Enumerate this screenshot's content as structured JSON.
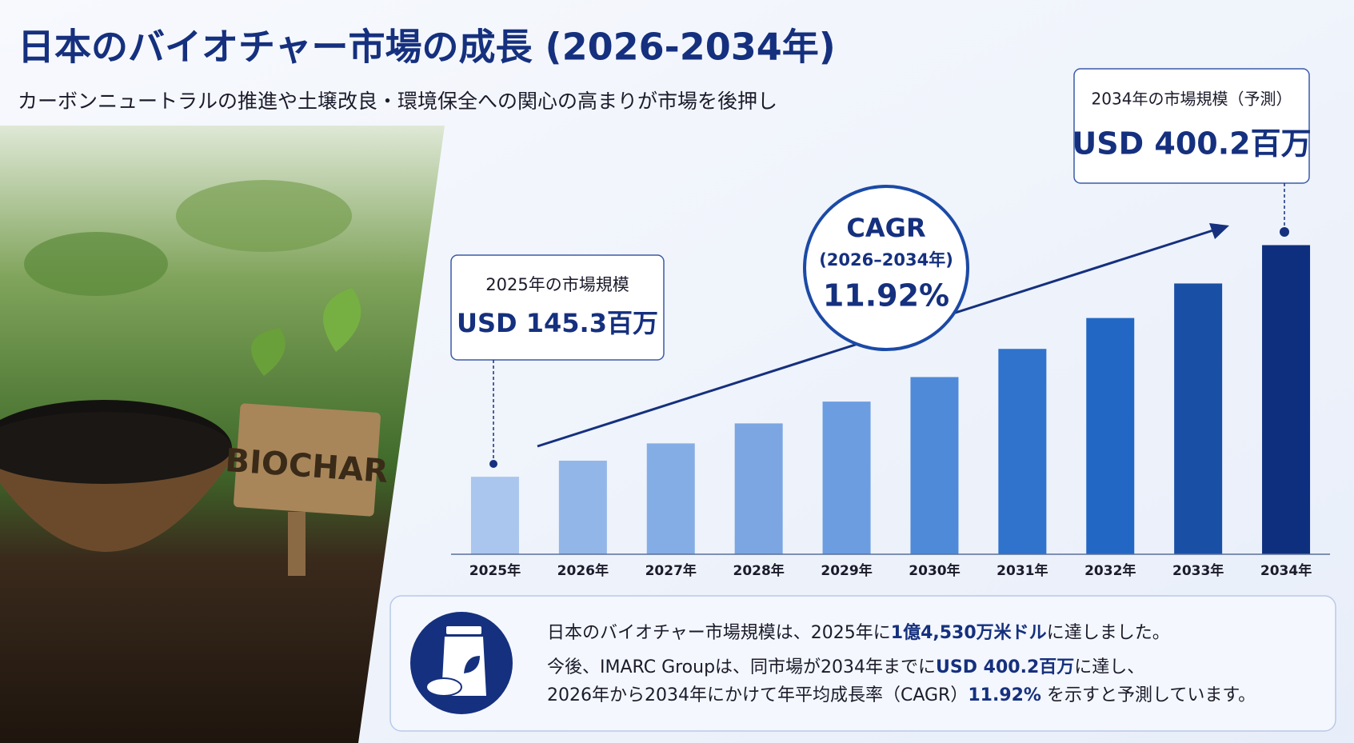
{
  "header": {
    "title": "日本のバイオチャー市場の成長 (2026-2034年)",
    "subtitle": "カーボンニュートラルの推進や土壌改良・環境保全への関心の高まりが市場を後押し"
  },
  "image": {
    "sign": "BIOCHAR"
  },
  "chart_data": {
    "type": "bar",
    "categories": [
      "2025年",
      "2026年",
      "2027年",
      "2028年",
      "2029年",
      "2030年",
      "2031年",
      "2032年",
      "2033年",
      "2034年"
    ],
    "values": [
      145.3,
      163,
      182,
      204,
      228,
      255,
      286,
      320,
      358,
      400.2
    ],
    "colors": [
      "#aac6ee",
      "#93b6e8",
      "#85ade5",
      "#7ba6e2",
      "#6b9de0",
      "#4f8ad8",
      "#2f73cc",
      "#2367c4",
      "#1a4fa6",
      "#0e2f7e"
    ],
    "ylim": [
      60,
      420
    ]
  },
  "callouts": {
    "start": {
      "label": "2025年の市場規模",
      "value": "USD 145.3百万"
    },
    "end": {
      "label": "2034年の市場規模（予測）",
      "value": "USD 400.2百万"
    },
    "cagr": {
      "label": "CAGR",
      "period": "(2026–2034年)",
      "value": "11.92%"
    }
  },
  "summary": {
    "lines": [
      [
        {
          "text": "日本のバイオチャー市場規模は、2025年に",
          "bold": false
        },
        {
          "text": "1億4,530万米ドル",
          "bold": true
        },
        {
          "text": "に達しました。",
          "bold": false
        }
      ],
      [
        {
          "text": "今後、IMARC Groupは、同市場が2034年までに",
          "bold": false
        },
        {
          "text": "USD 400.2百万",
          "bold": true
        },
        {
          "text": "に達し、",
          "bold": false
        }
      ],
      [
        {
          "text": "2026年から2034年にかけて年平均成長率（CAGR）",
          "bold": false
        },
        {
          "text": "11.92%",
          "bold": true
        },
        {
          "text": " を示すと予測しています。",
          "bold": false
        }
      ]
    ]
  }
}
